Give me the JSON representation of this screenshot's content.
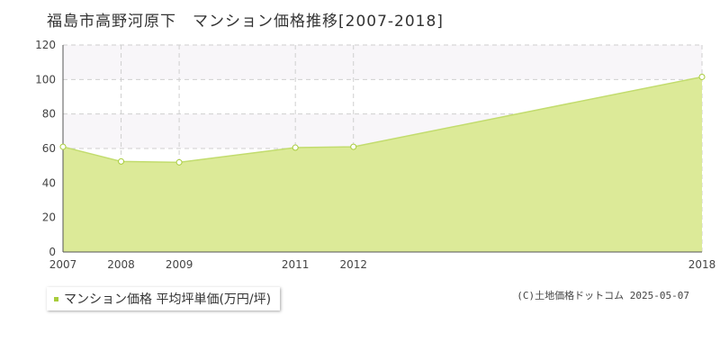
{
  "header": {
    "title": "福島市高野河原下　マンション価格推移[2007-2018]"
  },
  "legend": {
    "label": "マンション価格 平均坪単価(万円/坪)"
  },
  "source": "(C)土地価格ドットコム 2025-05-07",
  "colors": {
    "fill": "#dcea98",
    "line": "#c2dc6e",
    "marker": "#a8cc3c",
    "band": "#f8f6f9",
    "grid": "#cfcfcf"
  },
  "chart_data": {
    "type": "area",
    "title": "福島市高野河原下　マンション価格推移[2007-2018]",
    "xlabel": "",
    "ylabel": "",
    "x": [
      2007,
      2008,
      2009,
      2011,
      2012,
      2018
    ],
    "x_labels": [
      "2007",
      "2008",
      "2009",
      "2011",
      "2012",
      "2018"
    ],
    "y_ticks": [
      "0",
      "20",
      "40",
      "60",
      "80",
      "100",
      "120"
    ],
    "ylim": [
      0,
      120
    ],
    "grid": true,
    "legend_position": "bottom-left",
    "series": [
      {
        "name": "マンション価格 平均坪単価(万円/坪)",
        "values": [
          61.0,
          52.5,
          52.0,
          60.5,
          61.0,
          101.5
        ]
      }
    ]
  }
}
